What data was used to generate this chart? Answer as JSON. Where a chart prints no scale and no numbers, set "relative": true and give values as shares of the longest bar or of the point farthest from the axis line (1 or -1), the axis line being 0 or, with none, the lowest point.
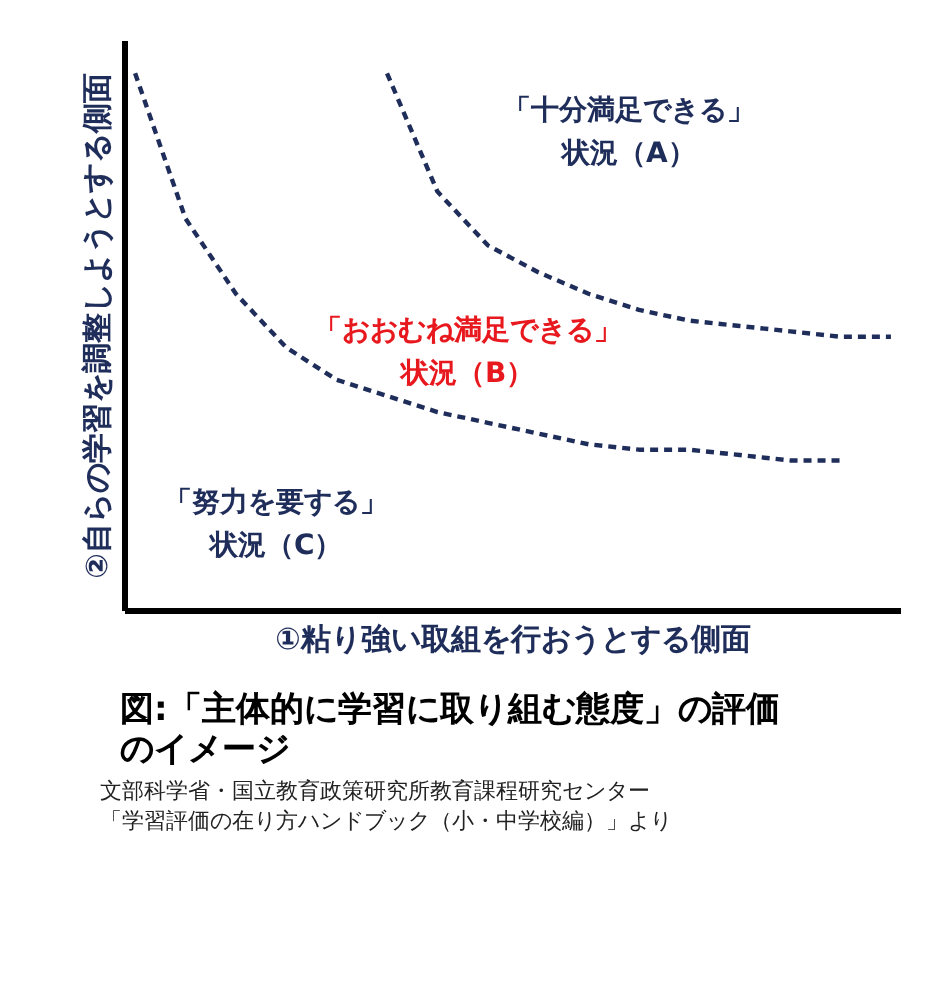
{
  "chart_data": {
    "type": "line",
    "relative": true,
    "title": "図:「主体的に学習に取り組む態度」の評価のイメージ",
    "xlabel": "①粘り強い取組を行おうとする側面",
    "ylabel": "②自らの学習を調整しようとする側面",
    "categories": [
      null,
      null,
      null,
      null,
      null,
      null,
      null,
      null,
      null,
      null,
      null,
      null,
      null,
      null,
      null,
      null
    ],
    "series": [
      {
        "color": "#1f2d5a",
        "values": [
          null,
          null,
          null,
          null,
          null,
          1.0,
          0.78,
          0.68,
          0.63,
          0.59,
          0.56,
          0.54,
          0.53,
          0.52,
          0.51,
          0.51
        ]
      },
      {
        "color": "#1f2d5a",
        "values": [
          1.0,
          0.73,
          0.59,
          0.49,
          0.43,
          0.4,
          0.37,
          0.35,
          0.33,
          0.31,
          0.3,
          0.3,
          0.29,
          0.28,
          0.28,
          null
        ]
      }
    ],
    "line_style": "dashed",
    "marker": "none",
    "annotations": [
      "「十分満足できる」",
      "状況（A）",
      "「おおむね満足できる」",
      "状況（B）",
      "「努力を要する」",
      "状況（C）",
      "文部科学省・国立教育政策研究所教育課程研究センター",
      "「学習評価の在り方ハンドブック（小・中学校編）」より"
    ]
  }
}
